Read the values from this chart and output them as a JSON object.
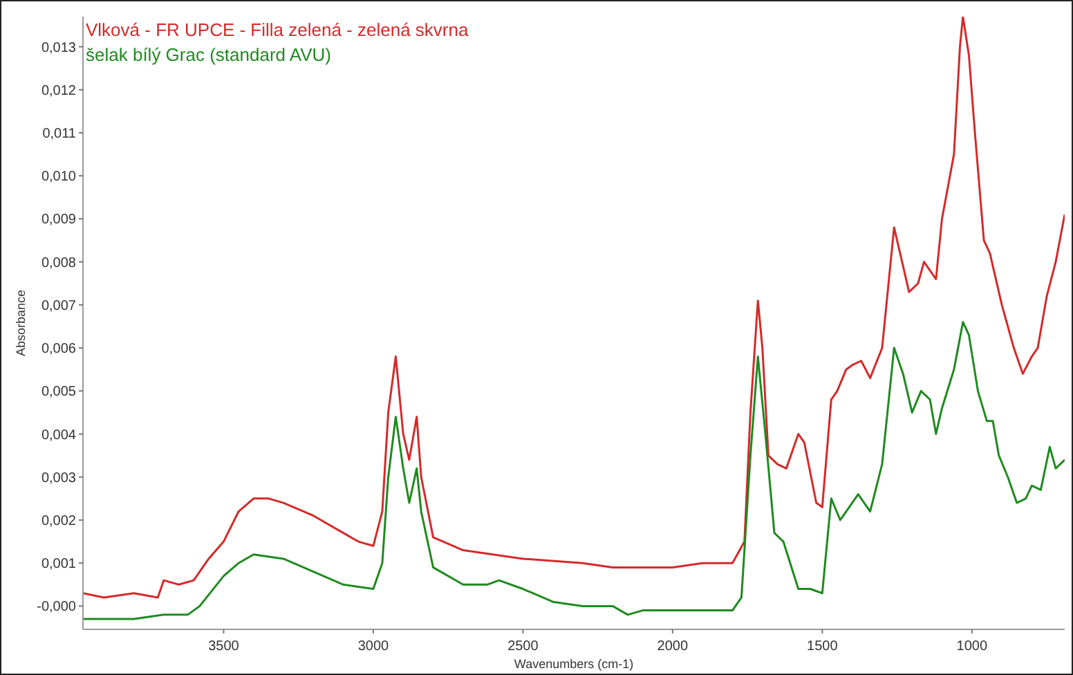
{
  "chart_data": {
    "type": "line",
    "xlabel": "Wavenumbers (cm-1)",
    "ylabel": "Absorbance",
    "xlim": [
      3970,
      690
    ],
    "xticks": [
      3500,
      3000,
      2500,
      2000,
      1500,
      1000
    ],
    "ylim": [
      -0.00054,
      0.0137
    ],
    "yticks": [
      {
        "value": 0,
        "label": "-0,000"
      },
      {
        "value": 0.001,
        "label": "0,001"
      },
      {
        "value": 0.002,
        "label": "0,002"
      },
      {
        "value": 0.003,
        "label": "0,003"
      },
      {
        "value": 0.004,
        "label": "0,004"
      },
      {
        "value": 0.005,
        "label": "0,005"
      },
      {
        "value": 0.006,
        "label": "0,006"
      },
      {
        "value": 0.007,
        "label": "0,007"
      },
      {
        "value": 0.008,
        "label": "0,008"
      },
      {
        "value": 0.009,
        "label": "0,009"
      },
      {
        "value": 0.01,
        "label": "0,010"
      },
      {
        "value": 0.011,
        "label": "0,011"
      },
      {
        "value": 0.012,
        "label": "0,012"
      },
      {
        "value": 0.013,
        "label": "0,013"
      }
    ],
    "grid": false,
    "legend": "top left",
    "series": [
      {
        "name": "Vlková - FR UPCE - Filla zelená - zelená skvrna",
        "color": "#d42a2a",
        "x": [
          3970,
          3900,
          3800,
          3720,
          3700,
          3650,
          3600,
          3580,
          3550,
          3500,
          3450,
          3400,
          3350,
          3300,
          3200,
          3100,
          3050,
          3000,
          2970,
          2950,
          2925,
          2900,
          2880,
          2855,
          2840,
          2800,
          2700,
          2600,
          2500,
          2300,
          2200,
          2000,
          1900,
          1800,
          1760,
          1740,
          1715,
          1700,
          1680,
          1650,
          1620,
          1580,
          1560,
          1520,
          1500,
          1470,
          1450,
          1420,
          1400,
          1370,
          1340,
          1300,
          1260,
          1240,
          1210,
          1180,
          1160,
          1140,
          1120,
          1100,
          1060,
          1040,
          1030,
          1010,
          990,
          960,
          940,
          900,
          860,
          830,
          800,
          780,
          750,
          720,
          690
        ],
        "values": [
          0.0003,
          0.0002,
          0.0003,
          0.0002,
          0.0006,
          0.0005,
          0.0006,
          0.0008,
          0.0011,
          0.0015,
          0.0022,
          0.0025,
          0.0025,
          0.0024,
          0.0021,
          0.0017,
          0.0015,
          0.0014,
          0.0022,
          0.0045,
          0.0058,
          0.004,
          0.0034,
          0.0044,
          0.003,
          0.0016,
          0.0013,
          0.0012,
          0.0011,
          0.001,
          0.0009,
          0.0009,
          0.001,
          0.001,
          0.0015,
          0.0045,
          0.0071,
          0.006,
          0.0035,
          0.0033,
          0.0032,
          0.004,
          0.0038,
          0.0024,
          0.0023,
          0.0048,
          0.005,
          0.0055,
          0.0056,
          0.0057,
          0.0053,
          0.006,
          0.0088,
          0.0082,
          0.0073,
          0.0075,
          0.008,
          0.0078,
          0.0076,
          0.009,
          0.0105,
          0.013,
          0.0137,
          0.0128,
          0.011,
          0.0085,
          0.0082,
          0.007,
          0.006,
          0.0054,
          0.0058,
          0.006,
          0.0072,
          0.008,
          0.0091
        ]
      },
      {
        "name": "šelak bílý Grac (standard AVU)",
        "color": "#1f8a1f",
        "x": [
          3970,
          3800,
          3700,
          3620,
          3580,
          3500,
          3450,
          3400,
          3300,
          3200,
          3100,
          3000,
          2970,
          2950,
          2925,
          2900,
          2880,
          2855,
          2840,
          2800,
          2700,
          2620,
          2580,
          2500,
          2400,
          2300,
          2200,
          2150,
          2100,
          2000,
          1800,
          1770,
          1740,
          1715,
          1690,
          1660,
          1630,
          1580,
          1540,
          1500,
          1470,
          1440,
          1410,
          1380,
          1340,
          1300,
          1260,
          1230,
          1200,
          1170,
          1140,
          1120,
          1100,
          1060,
          1030,
          1010,
          980,
          950,
          930,
          910,
          880,
          850,
          820,
          800,
          770,
          740,
          720,
          690
        ],
        "values": [
          -0.0003,
          -0.0003,
          -0.0002,
          -0.0002,
          0,
          0.0007,
          0.001,
          0.0012,
          0.0011,
          0.0008,
          0.0005,
          0.0004,
          0.001,
          0.003,
          0.0044,
          0.0032,
          0.0024,
          0.0032,
          0.0022,
          0.0009,
          0.0005,
          0.0005,
          0.0006,
          0.0004,
          0.0001,
          0,
          0,
          -0.0002,
          -0.0001,
          -0.0001,
          -0.0001,
          0.0002,
          0.0035,
          0.0058,
          0.004,
          0.0017,
          0.0015,
          0.0004,
          0.0004,
          0.0003,
          0.0025,
          0.002,
          0.0023,
          0.0026,
          0.0022,
          0.0033,
          0.006,
          0.0054,
          0.0045,
          0.005,
          0.0048,
          0.004,
          0.0046,
          0.0055,
          0.0066,
          0.0063,
          0.005,
          0.0043,
          0.0043,
          0.0035,
          0.003,
          0.0024,
          0.0025,
          0.0028,
          0.0027,
          0.0037,
          0.0032,
          0.0034
        ]
      }
    ]
  }
}
